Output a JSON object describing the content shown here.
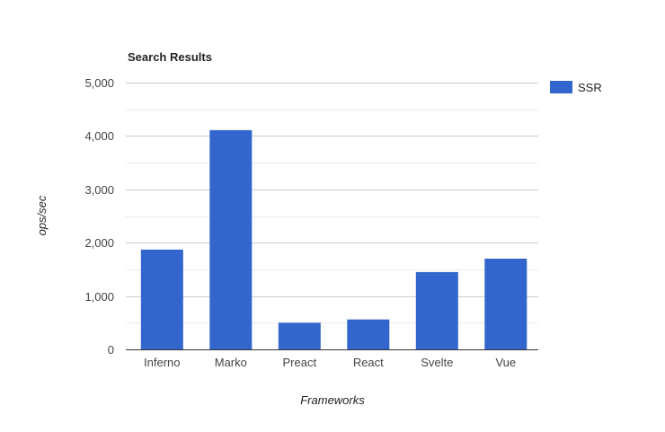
{
  "chart_data": {
    "type": "bar",
    "title": "Search Results",
    "xlabel": "Frameworks",
    "ylabel": "ops/sec",
    "categories": [
      "Inferno",
      "Marko",
      "Preact",
      "React",
      "Svelte",
      "Vue"
    ],
    "series": [
      {
        "name": "SSR",
        "color": "#3366cc",
        "values": [
          1870,
          4110,
          500,
          560,
          1450,
          1700
        ]
      }
    ],
    "ylim": [
      0,
      5000
    ],
    "yticks": [
      0,
      1000,
      2000,
      3000,
      4000,
      5000
    ],
    "ytick_labels": [
      "0",
      "1,000",
      "2,000",
      "3,000",
      "4,000",
      "5,000"
    ],
    "grid": true,
    "legend_position": "right"
  }
}
